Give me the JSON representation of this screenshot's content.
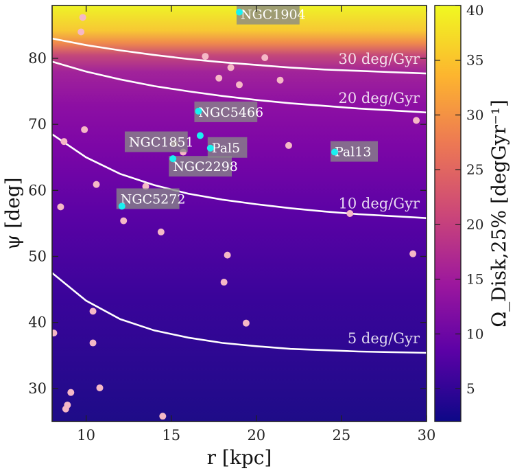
{
  "chart_data": {
    "type": "heatmap",
    "xlabel": "r [kpc]",
    "ylabel": "ψ [deg]",
    "xlim": [
      8,
      30
    ],
    "ylim": [
      25,
      88
    ],
    "x_ticks": [
      10,
      15,
      20,
      25,
      30
    ],
    "y_ticks": [
      30,
      40,
      50,
      60,
      70,
      80
    ],
    "colorbar": {
      "label": "Ω_Disk,25% [degGyr⁻¹]",
      "range": [
        2,
        40
      ],
      "ticks": [
        5,
        10,
        15,
        20,
        25,
        30,
        35,
        40
      ],
      "colormap": [
        "#0d0887",
        "#5c01a6",
        "#9c179e",
        "#cc4778",
        "#ed7953",
        "#fdb42f",
        "#f0f921"
      ]
    },
    "contours": [
      {
        "label": "5 deg/Gyr",
        "level": 5,
        "x": [
          8,
          10,
          12,
          14,
          16,
          18,
          20,
          22,
          24,
          26,
          28,
          30
        ],
        "y": [
          47.5,
          43.3,
          40.5,
          38.8,
          37.7,
          36.9,
          36.4,
          36.0,
          35.8,
          35.6,
          35.5,
          35.4
        ]
      },
      {
        "label": "10 deg/Gyr",
        "level": 10,
        "x": [
          8,
          10,
          12,
          14,
          16,
          18,
          20,
          22,
          24,
          26,
          28,
          30
        ],
        "y": [
          68.5,
          65.0,
          62.5,
          60.8,
          59.5,
          58.6,
          57.9,
          57.3,
          56.8,
          56.4,
          56.1,
          55.8
        ]
      },
      {
        "label": "20 deg/Gyr",
        "level": 20,
        "x": [
          8,
          10,
          12,
          14,
          16,
          18,
          20,
          22,
          24,
          26,
          28,
          30
        ],
        "y": [
          79.5,
          78.0,
          76.8,
          75.8,
          75.0,
          74.3,
          73.7,
          73.2,
          72.8,
          72.4,
          72.1,
          71.8
        ]
      },
      {
        "label": "30 deg/Gyr",
        "level": 30,
        "x": [
          8,
          10,
          12,
          14,
          16,
          18,
          20,
          22,
          24,
          26,
          28,
          30
        ],
        "y": [
          83.0,
          82.0,
          81.2,
          80.5,
          79.9,
          79.4,
          79.0,
          78.6,
          78.3,
          78.1,
          77.9,
          77.7
        ]
      }
    ],
    "highlighted_clusters": [
      {
        "name": "NGC1904",
        "x": 19.0,
        "y": 87.0
      },
      {
        "name": "NGC5466",
        "x": 16.6,
        "y": 72.0
      },
      {
        "name": "NGC1851",
        "x": 16.7,
        "y": 68.3
      },
      {
        "name": "Pal5",
        "x": 17.3,
        "y": 66.4
      },
      {
        "name": "NGC2298",
        "x": 15.1,
        "y": 64.8
      },
      {
        "name": "Pal13",
        "x": 24.6,
        "y": 65.8
      },
      {
        "name": "NGC5272",
        "x": 12.1,
        "y": 57.6
      }
    ],
    "other_clusters": [
      {
        "x": 9.8,
        "y": 86.2
      },
      {
        "x": 9.7,
        "y": 84.0
      },
      {
        "x": 17.0,
        "y": 80.3
      },
      {
        "x": 20.5,
        "y": 80.1
      },
      {
        "x": 18.5,
        "y": 78.6
      },
      {
        "x": 17.8,
        "y": 77.0
      },
      {
        "x": 21.4,
        "y": 76.7
      },
      {
        "x": 19.0,
        "y": 76.0
      },
      {
        "x": 9.9,
        "y": 69.2
      },
      {
        "x": 29.4,
        "y": 70.6
      },
      {
        "x": 8.7,
        "y": 67.4
      },
      {
        "x": 15.2,
        "y": 67.1
      },
      {
        "x": 21.9,
        "y": 66.8
      },
      {
        "x": 15.7,
        "y": 65.8
      },
      {
        "x": 10.6,
        "y": 60.9
      },
      {
        "x": 13.5,
        "y": 60.6
      },
      {
        "x": 8.5,
        "y": 57.5
      },
      {
        "x": 25.5,
        "y": 56.5
      },
      {
        "x": 12.2,
        "y": 55.4
      },
      {
        "x": 14.4,
        "y": 53.7
      },
      {
        "x": 18.3,
        "y": 50.2
      },
      {
        "x": 29.2,
        "y": 50.4
      },
      {
        "x": 18.1,
        "y": 46.1
      },
      {
        "x": 10.4,
        "y": 41.7
      },
      {
        "x": 19.4,
        "y": 39.9
      },
      {
        "x": 8.1,
        "y": 38.4
      },
      {
        "x": 10.4,
        "y": 36.9
      },
      {
        "x": 10.8,
        "y": 30.1
      },
      {
        "x": 9.1,
        "y": 29.4
      },
      {
        "x": 8.9,
        "y": 27.5
      },
      {
        "x": 8.8,
        "y": 26.9
      },
      {
        "x": 14.5,
        "y": 25.8
      }
    ]
  }
}
